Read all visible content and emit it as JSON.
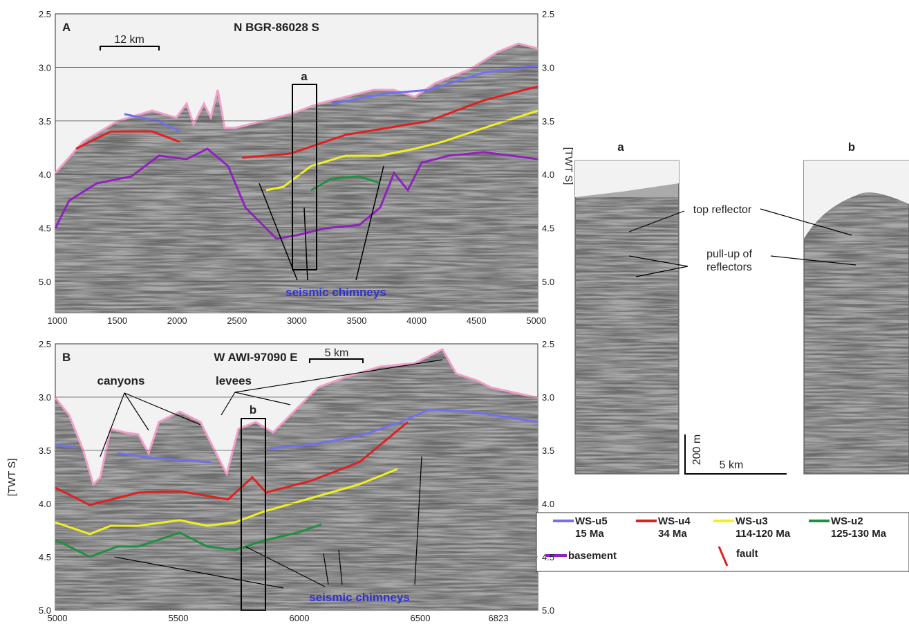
{
  "axis_label": "[TWT S]",
  "panels": [
    {
      "label": "A",
      "title": "N BGR-86028 S",
      "scale": "12 km",
      "box": "a",
      "annotations": [
        "seismic chimneys"
      ],
      "yticks": [
        "2.5",
        "3.0",
        "3.5",
        "4.0",
        "4.5",
        "5.0"
      ],
      "xticks": [
        "1000",
        "1500",
        "2000",
        "2500",
        "3000",
        "3500",
        "4000",
        "4500",
        "5000"
      ]
    },
    {
      "label": "B",
      "title": "W AWI-97090 E",
      "scale": "5 km",
      "box": "b",
      "annotations": [
        "canyons",
        "levees",
        "seismic chimneys"
      ],
      "yticks": [
        "2.5",
        "3.0",
        "3.5",
        "4.0",
        "4.5",
        "5.0"
      ],
      "xticks": [
        "5000",
        "5500",
        "6000",
        "6500",
        "6823"
      ]
    }
  ],
  "insets": {
    "a": {
      "label": "a",
      "annotations": [
        "top reflector",
        "pull-up of reflectors"
      ]
    },
    "b": {
      "label": "b"
    },
    "scale_vertical": "200 m",
    "scale_horizontal": "5 km"
  },
  "legend": [
    {
      "name": "WS-u5",
      "age": "15 Ma",
      "color": "#7070f0"
    },
    {
      "name": "WS-u4",
      "age": "34 Ma",
      "color": "#e02020"
    },
    {
      "name": "WS-u3",
      "age": "114-120 Ma",
      "color": "#f0f020"
    },
    {
      "name": "WS-u2",
      "age": "125-130 Ma",
      "color": "#209040"
    },
    {
      "name": "basement",
      "color": "#9020c0"
    },
    {
      "name": "fault",
      "color": "#e02020"
    }
  ]
}
